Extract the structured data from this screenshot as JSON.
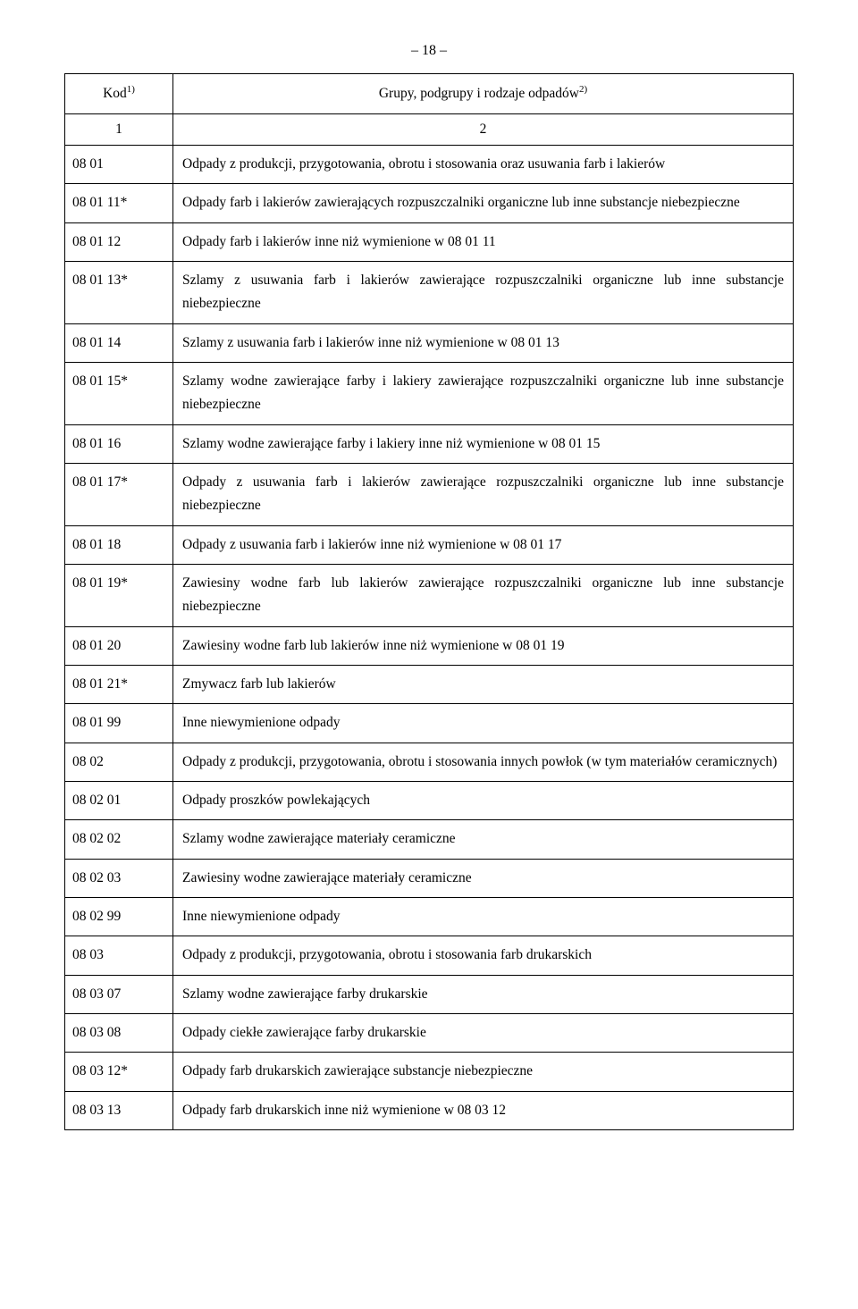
{
  "pageNumber": "– 18 –",
  "table": {
    "header": {
      "codeLabel": "Kod",
      "codeSup": "1)",
      "descLabel": "Grupy, podgrupy i rodzaje odpadów",
      "descSup": "2)"
    },
    "colNumbers": {
      "c1": "1",
      "c2": "2"
    },
    "rows": [
      {
        "code": "08 01",
        "desc": "Odpady z produkcji, przygotowania, obrotu i stosowania oraz usuwania farb i lakierów"
      },
      {
        "code": "08 01 11*",
        "desc": "Odpady farb i lakierów zawierających rozpuszczalniki organiczne lub inne substancje niebezpieczne"
      },
      {
        "code": "08 01 12",
        "desc": "Odpady farb i lakierów inne niż wymienione w 08 01 11"
      },
      {
        "code": "08 01 13*",
        "desc": "Szlamy z usuwania farb i lakierów zawierające rozpuszczalniki organiczne lub inne substancje niebezpieczne"
      },
      {
        "code": "08 01 14",
        "desc": "Szlamy z usuwania farb i lakierów inne niż wymienione w 08 01 13"
      },
      {
        "code": "08 01 15*",
        "desc": "Szlamy wodne zawierające farby i lakiery zawierające rozpuszczalniki organiczne lub inne substancje niebezpieczne"
      },
      {
        "code": "08 01 16",
        "desc": "Szlamy wodne zawierające farby i lakiery inne niż wymienione w 08 01 15"
      },
      {
        "code": "08 01 17*",
        "desc": "Odpady z usuwania farb i lakierów zawierające rozpuszczalniki organiczne lub inne substancje niebezpieczne"
      },
      {
        "code": "08 01 18",
        "desc": "Odpady z usuwania farb i lakierów inne niż wymienione w 08 01 17"
      },
      {
        "code": "08 01 19*",
        "desc": "Zawiesiny wodne farb lub lakierów zawierające rozpuszczalniki organiczne lub inne substancje niebezpieczne"
      },
      {
        "code": "08 01 20",
        "desc": "Zawiesiny wodne farb lub lakierów inne niż wymienione w 08 01 19"
      },
      {
        "code": "08 01 21*",
        "desc": "Zmywacz farb lub lakierów"
      },
      {
        "code": "08 01 99",
        "desc": "Inne niewymienione odpady"
      },
      {
        "code": "08 02",
        "desc": "Odpady z produkcji, przygotowania, obrotu i stosowania innych powłok (w tym materiałów ceramicznych)"
      },
      {
        "code": "08 02 01",
        "desc": "Odpady proszków powlekających"
      },
      {
        "code": "08 02 02",
        "desc": "Szlamy wodne zawierające materiały ceramiczne"
      },
      {
        "code": "08 02 03",
        "desc": "Zawiesiny wodne zawierające materiały ceramiczne"
      },
      {
        "code": "08 02 99",
        "desc": "Inne niewymienione odpady"
      },
      {
        "code": "08 03",
        "desc": "Odpady z produkcji, przygotowania, obrotu i stosowania farb drukarskich"
      },
      {
        "code": "08 03 07",
        "desc": "Szlamy wodne zawierające farby drukarskie"
      },
      {
        "code": "08 03 08",
        "desc": "Odpady ciekłe zawierające farby drukarskie"
      },
      {
        "code": "08 03 12*",
        "desc": "Odpady farb drukarskich zawierające substancje niebezpieczne"
      },
      {
        "code": "08 03 13",
        "desc": "Odpady farb drukarskich inne niż wymienione w 08 03 12"
      }
    ]
  },
  "styling": {
    "pageWidth": 960,
    "pageHeight": 1465,
    "bgColor": "#ffffff",
    "textColor": "#000000",
    "borderColor": "#000000",
    "fontFamily": "Georgia, Times New Roman, serif",
    "fontSize": 15.5,
    "lineHeight": 1.7,
    "codeColWidth": 100
  }
}
